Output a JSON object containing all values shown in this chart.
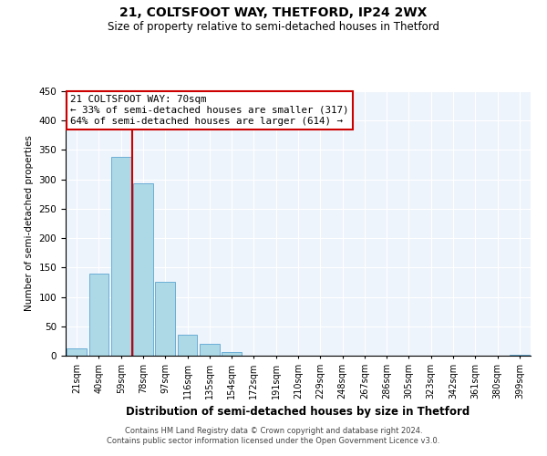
{
  "title": "21, COLTSFOOT WAY, THETFORD, IP24 2WX",
  "subtitle": "Size of property relative to semi-detached houses in Thetford",
  "xlabel": "Distribution of semi-detached houses by size in Thetford",
  "ylabel": "Number of semi-detached properties",
  "bin_labels": [
    "21sqm",
    "40sqm",
    "59sqm",
    "78sqm",
    "97sqm",
    "116sqm",
    "135sqm",
    "154sqm",
    "172sqm",
    "191sqm",
    "210sqm",
    "229sqm",
    "248sqm",
    "267sqm",
    "286sqm",
    "305sqm",
    "323sqm",
    "342sqm",
    "361sqm",
    "380sqm",
    "399sqm"
  ],
  "bar_values": [
    13,
    140,
    338,
    293,
    125,
    36,
    20,
    6,
    0,
    0,
    0,
    0,
    0,
    0,
    0,
    0,
    0,
    0,
    0,
    0,
    2
  ],
  "bar_color": "#add8e6",
  "bar_edgecolor": "#6baed6",
  "property_line_x": 2.5,
  "vline_color": "#cc0000",
  "annotation_title": "21 COLTSFOOT WAY: 70sqm",
  "annotation_line1": "← 33% of semi-detached houses are smaller (317)",
  "annotation_line2": "64% of semi-detached houses are larger (614) →",
  "annotation_box_edgecolor": "#cc0000",
  "ylim": [
    0,
    450
  ],
  "yticks": [
    0,
    50,
    100,
    150,
    200,
    250,
    300,
    350,
    400,
    450
  ],
  "footer1": "Contains HM Land Registry data © Crown copyright and database right 2024.",
  "footer2": "Contains public sector information licensed under the Open Government Licence v3.0.",
  "bg_color": "#eef4fb",
  "title_fontsize": 10,
  "subtitle_fontsize": 8.5
}
